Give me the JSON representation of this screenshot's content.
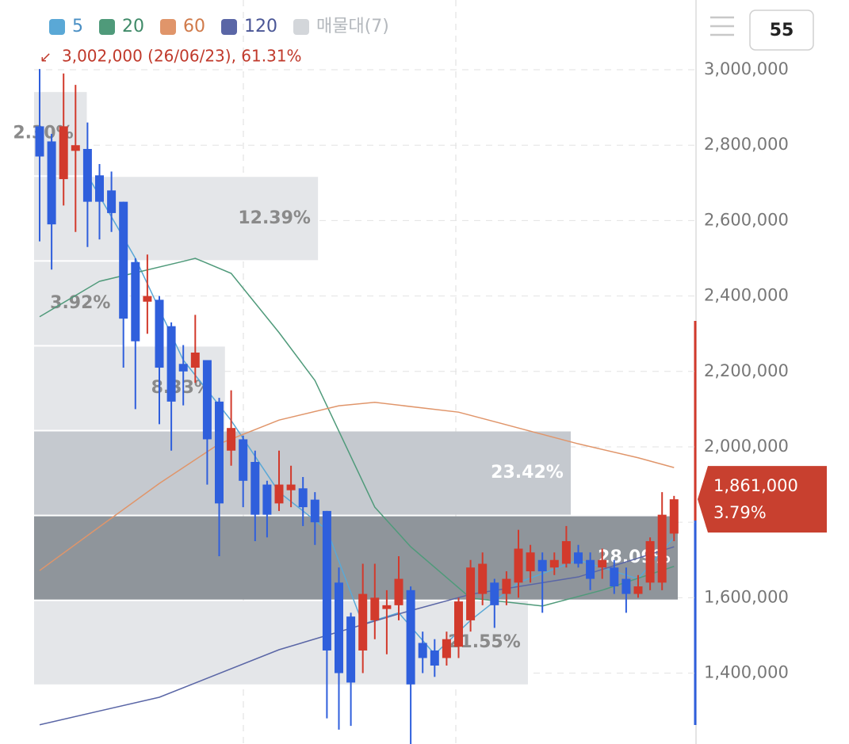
{
  "chart_data": {
    "type": "candlestick",
    "legend": [
      {
        "name": "5",
        "color": "#5aa8d6",
        "text_color": "#4a8fc4"
      },
      {
        "name": "20",
        "color": "#4f9a7a",
        "text_color": "#3f8a68"
      },
      {
        "name": "60",
        "color": "#e0956a",
        "text_color": "#d07a4a"
      },
      {
        "name": "120",
        "color": "#5a66a6",
        "text_color": "#4a5696"
      },
      {
        "name": "매물대(7)",
        "color": "#d3d6da",
        "text_color": "#b4b8bd"
      }
    ],
    "annotation": "3,002,000 (26/06/23), 61.31%",
    "ylim": [
      1212000,
      3185000
    ],
    "yticks": [
      {
        "value": 1400000,
        "label": "1,400,000"
      },
      {
        "value": 1600000,
        "label": "1,600,000"
      },
      {
        "value": 1800000,
        "label": "1,800,000"
      },
      {
        "value": 2000000,
        "label": "2,000,000"
      },
      {
        "value": 2200000,
        "label": "2,200,000"
      },
      {
        "value": 2400000,
        "label": "2,400,000"
      },
      {
        "value": 2600000,
        "label": "2,600,000"
      },
      {
        "value": 2800000,
        "label": "2,800,000"
      },
      {
        "value": 3000000,
        "label": "3,000,000"
      }
    ],
    "grid": true,
    "up_color": "#d23a2c",
    "down_color": "#2f5fdc",
    "open": [
      2850000,
      2810000,
      2710000,
      2785000,
      2790000,
      2720000,
      2680000,
      2650000,
      2490000,
      2385000,
      2390000,
      2320000,
      2220000,
      2210000,
      2230000,
      2120000,
      1990000,
      2020000,
      1960000,
      1900000,
      1850000,
      1885000,
      1890000,
      1860000,
      1830000,
      1640000,
      1550000,
      1460000,
      1540000,
      1570000,
      1580000,
      1620000,
      1480000,
      1460000,
      1440000,
      1470000,
      1540000,
      1610000,
      1640000,
      1610000,
      1640000,
      1670000,
      1700000,
      1680000,
      1690000,
      1720000,
      1700000,
      1680000,
      1680000,
      1650000,
      1610000,
      1640000,
      1640000,
      1770000
    ],
    "high": [
      3002000,
      2830000,
      2990000,
      2960000,
      2860000,
      2750000,
      2730000,
      2650000,
      2500000,
      2510000,
      2400000,
      2330000,
      2270000,
      2350000,
      2230000,
      2130000,
      2150000,
      2030000,
      1990000,
      1910000,
      1990000,
      1950000,
      1920000,
      1880000,
      1830000,
      1680000,
      1560000,
      1690000,
      1690000,
      1620000,
      1710000,
      1630000,
      1510000,
      1490000,
      1510000,
      1600000,
      1700000,
      1720000,
      1650000,
      1670000,
      1780000,
      1740000,
      1720000,
      1720000,
      1790000,
      1740000,
      1720000,
      1730000,
      1700000,
      1680000,
      1660000,
      1760000,
      1880000,
      1870000
    ],
    "low": [
      2545000,
      2470000,
      2640000,
      2570000,
      2530000,
      2550000,
      2570000,
      2210000,
      2100000,
      2300000,
      2060000,
      1990000,
      2110000,
      2170000,
      1900000,
      1710000,
      1950000,
      1840000,
      1750000,
      1760000,
      1830000,
      1840000,
      1790000,
      1740000,
      1280000,
      1250000,
      1260000,
      1400000,
      1490000,
      1450000,
      1540000,
      1200000,
      1400000,
      1390000,
      1420000,
      1440000,
      1510000,
      1580000,
      1520000,
      1580000,
      1600000,
      1640000,
      1560000,
      1660000,
      1680000,
      1680000,
      1620000,
      1650000,
      1610000,
      1560000,
      1600000,
      1620000,
      1620000,
      1750000
    ],
    "close": [
      2770000,
      2590000,
      2850000,
      2800000,
      2650000,
      2650000,
      2620000,
      2340000,
      2280000,
      2400000,
      2210000,
      2120000,
      2200000,
      2250000,
      2020000,
      1850000,
      2050000,
      1910000,
      1820000,
      1820000,
      1900000,
      1900000,
      1840000,
      1800000,
      1460000,
      1400000,
      1375000,
      1610000,
      1600000,
      1580000,
      1650000,
      1370000,
      1440000,
      1420000,
      1490000,
      1590000,
      1680000,
      1690000,
      1580000,
      1650000,
      1730000,
      1720000,
      1670000,
      1700000,
      1750000,
      1690000,
      1650000,
      1700000,
      1630000,
      1610000,
      1630000,
      1750000,
      1820000,
      1861000
    ],
    "moving_averages": [
      {
        "name": "5",
        "color": "#5aa8d6",
        "x": [
          4,
          8,
          12,
          16,
          20,
          24,
          27,
          30,
          33,
          36,
          40,
          45,
          50,
          53
        ],
        "values": [
          2720000,
          2500000,
          2230000,
          2070000,
          1880000,
          1780000,
          1530000,
          1560000,
          1450000,
          1540000,
          1640000,
          1700000,
          1650000,
          1760000
        ]
      },
      {
        "name": "20",
        "color": "#4f9a7a",
        "x": [
          0,
          5,
          12,
          13,
          16,
          20,
          23,
          28,
          31,
          36,
          42,
          47,
          53
        ],
        "values": [
          2345000,
          2439000,
          2492000,
          2500000,
          2460000,
          2303000,
          2176000,
          1840000,
          1735000,
          1599000,
          1578000,
          1620000,
          1683000
        ]
      },
      {
        "name": "60",
        "color": "#e0956a",
        "x": [
          0,
          5,
          10,
          15,
          20,
          25,
          28,
          35,
          40,
          45,
          50,
          53
        ],
        "values": [
          1672000,
          1788000,
          1903000,
          2008000,
          2071000,
          2109000,
          2118000,
          2092000,
          2050000,
          2008000,
          1971000,
          1945000
        ]
      },
      {
        "name": "120",
        "color": "#5a66a6",
        "x": [
          0,
          10,
          20,
          30,
          36,
          45,
          53
        ],
        "values": [
          1263000,
          1336000,
          1462000,
          1557000,
          1609000,
          1655000,
          1735000
        ]
      }
    ],
    "volume_profile": {
      "edges": [
        1368000,
        1593000,
        1818000,
        2043000,
        2268000,
        2493000,
        2718000,
        2943000
      ],
      "values": [
        21.55,
        28.09,
        23.42,
        8.33,
        3.92,
        12.39,
        2.3
      ],
      "value_labels": [
        "21.55%",
        "28.09%",
        "23.42%",
        "8.33%",
        "3.92%",
        "12.39%",
        "2.30%"
      ]
    },
    "last_price": {
      "value": 1861000,
      "label": "1,861,000"
    },
    "change_label": "3.79%",
    "button_label": "55"
  }
}
